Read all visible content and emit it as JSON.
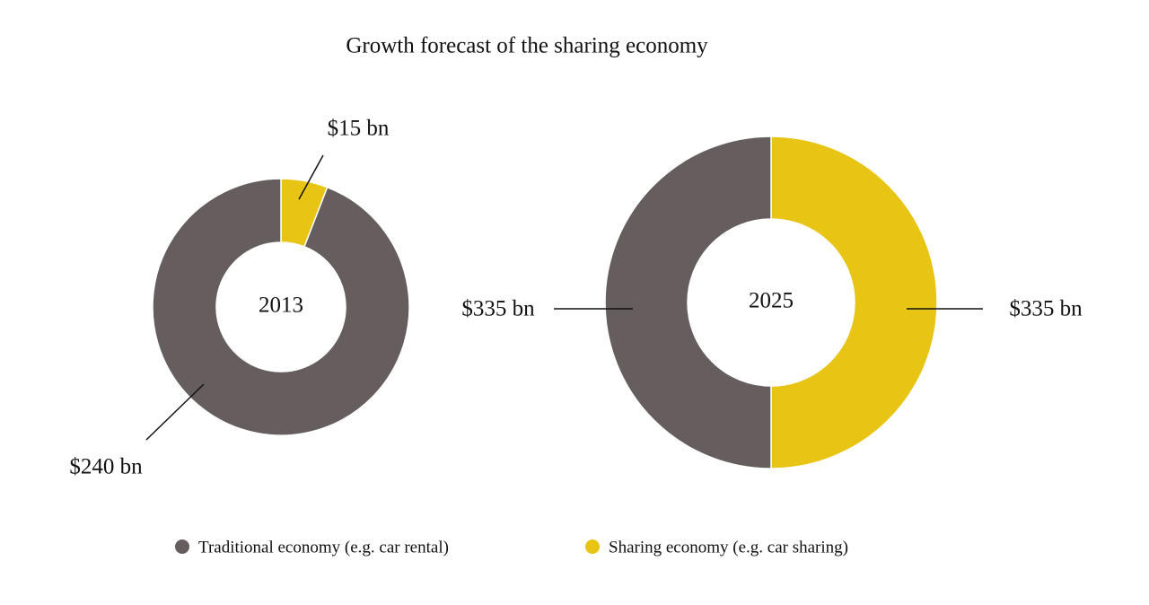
{
  "title": "Growth forecast of the sharing economy",
  "chart_data": [
    {
      "type": "donut",
      "title": "2013",
      "categories": [
        "Traditional economy (e.g. car rental)",
        "Sharing economy (e.g. car sharing)"
      ],
      "colors": [
        "#665e5e",
        "#e8c414"
      ],
      "values": [
        240,
        15
      ],
      "value_labels": [
        "$240 bn",
        "$15 bn"
      ]
    },
    {
      "type": "donut",
      "title": "2025",
      "categories": [
        "Traditional economy (e.g. car rental)",
        "Sharing economy (e.g. car sharing)"
      ],
      "colors": [
        "#665e5e",
        "#e8c414"
      ],
      "values": [
        335,
        335
      ],
      "value_labels": [
        "$335 bn",
        "$335 bn"
      ]
    }
  ]
}
